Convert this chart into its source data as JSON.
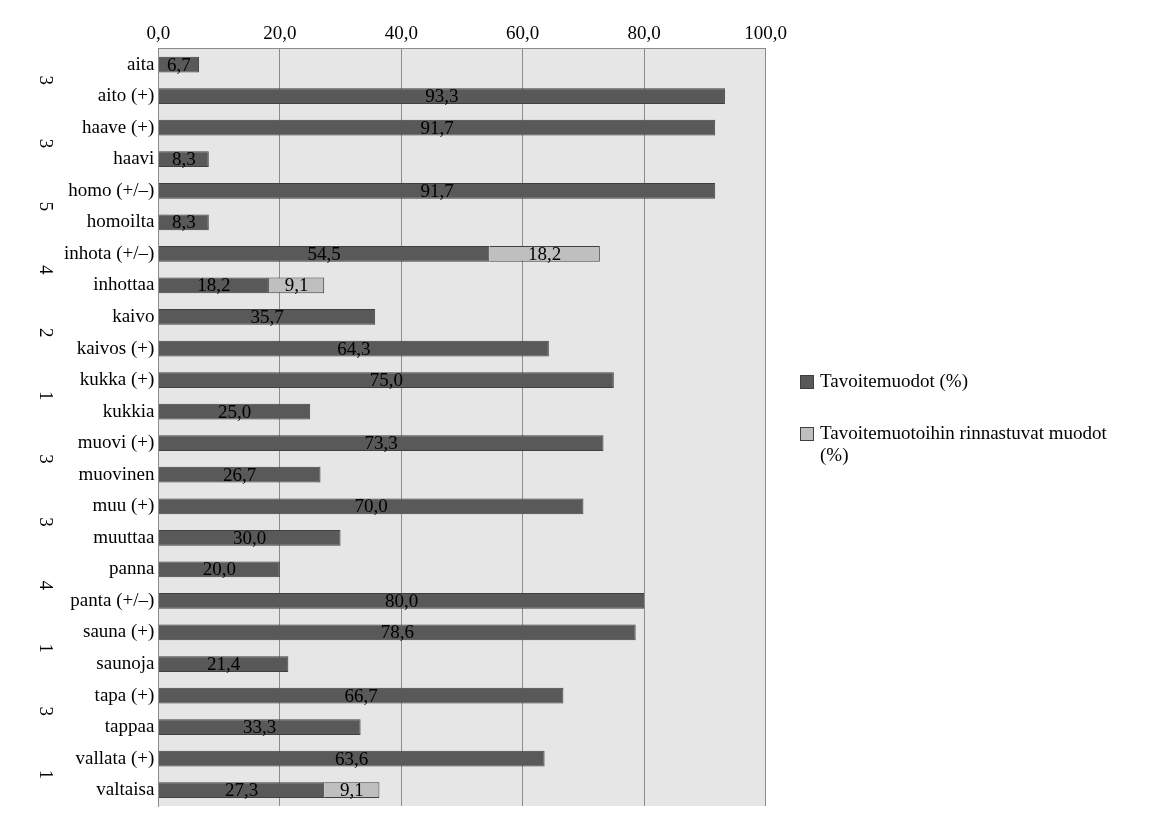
{
  "chart_data": {
    "type": "bar",
    "orientation": "horizontal",
    "stacked": true,
    "categories": [
      "aita",
      "aito (+)",
      "haave (+)",
      "haavi",
      "homo (+/–)",
      "homoilta",
      "inhota (+/–)",
      "inhottaa",
      "kaivo",
      "kaivos (+)",
      "kukka (+)",
      "kukkia",
      "muovi (+)",
      "muovinen",
      "muu (+)",
      "muuttaa",
      "panna",
      "panta (+/–)",
      "sauna (+)",
      "saunoja",
      "tapa (+)",
      "tappaa",
      "vallata (+)",
      "valtaisa"
    ],
    "series": [
      {
        "name": "Tavoitemuodot (%)",
        "color": "#595959",
        "values": [
          6.7,
          93.3,
          91.7,
          8.3,
          91.7,
          8.3,
          54.5,
          18.2,
          35.7,
          64.3,
          75.0,
          25.0,
          73.3,
          26.7,
          70.0,
          30.0,
          20.0,
          80.0,
          78.6,
          21.4,
          66.7,
          33.3,
          63.6,
          27.3
        ],
        "value_labels": [
          "6,7",
          "93,3",
          "91,7",
          "8,3",
          "91,7",
          "8,3",
          "54,5",
          "18,2",
          "35,7",
          "64,3",
          "75,0",
          "25,0",
          "73,3",
          "26,7",
          "70,0",
          "30,0",
          "20,0",
          "80,0",
          "78,6",
          "21,4",
          "66,7",
          "33,3",
          "63,6",
          "27,3"
        ]
      },
      {
        "name": "Tavoitemuotoihin rinnastuvat muodot (%)",
        "color": "#bfbfbf",
        "values": [
          null,
          null,
          null,
          null,
          null,
          null,
          18.2,
          9.1,
          null,
          null,
          null,
          null,
          null,
          null,
          null,
          null,
          null,
          null,
          null,
          null,
          null,
          null,
          null,
          9.1
        ],
        "value_labels": [
          null,
          null,
          null,
          null,
          null,
          null,
          "18,2",
          "9,1",
          null,
          null,
          null,
          null,
          null,
          null,
          null,
          null,
          null,
          null,
          null,
          null,
          null,
          null,
          null,
          "9,1"
        ]
      }
    ],
    "xlim": [
      0,
      100
    ],
    "xticks": [
      {
        "value": 0,
        "label": "0,0"
      },
      {
        "value": 20,
        "label": "20,0"
      },
      {
        "value": 40,
        "label": "40,0"
      },
      {
        "value": 60,
        "label": "60,0"
      },
      {
        "value": 80,
        "label": "80,0"
      },
      {
        "value": 100,
        "label": "100,0"
      }
    ],
    "annotations": [
      "3",
      "3",
      "5",
      "4",
      "2",
      "1",
      "3",
      "3",
      "4",
      "1",
      "3",
      "1"
    ],
    "grid": "x",
    "legend": "right"
  }
}
